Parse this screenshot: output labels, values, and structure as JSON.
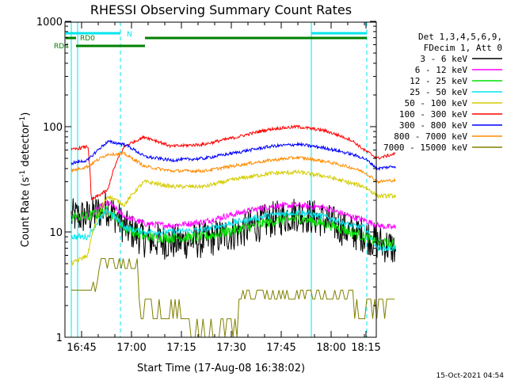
{
  "chart_data": {
    "type": "line",
    "title": "RHESSI Observing Summary Count Rates",
    "xlabel": "Start Time (17-Aug-08 16:38:02)",
    "ylabel_main": "Count Rate (s",
    "ylabel_sup1": "-1",
    "ylabel_mid": " detector",
    "ylabel_sup2": "-1",
    "ylabel_end": ")",
    "x_scale": "time, minutes after 16:38:02",
    "x_ticks": [
      "16:45",
      "17:00",
      "17:15",
      "17:30",
      "17:45",
      "18:00",
      "18:15"
    ],
    "y_scale": "log",
    "ylim": [
      1,
      1000
    ],
    "y_ticks": [
      "1",
      "10",
      "100",
      "1000"
    ],
    "grid": false,
    "legend_header": [
      "Det 1,3,4,5,6,9,",
      "FDecim 1, Att 0"
    ],
    "legend_position": "right",
    "series": [
      {
        "name": "3 - 6 keV",
        "color": "#000000"
      },
      {
        "name": "6 - 12 keV",
        "color": "#ff00ff"
      },
      {
        "name": "12 - 25 keV",
        "color": "#00e000"
      },
      {
        "name": "25 - 50 keV",
        "color": "#00e5ee"
      },
      {
        "name": "50 - 100 keV",
        "color": "#d4cc00"
      },
      {
        "name": "100 - 300 keV",
        "color": "#ff0000"
      },
      {
        "name": "300 - 800 keV",
        "color": "#0000ff"
      },
      {
        "name": "800 - 7000 keV",
        "color": "#ff8c00"
      },
      {
        "name": "7000 - 15000 keV",
        "color": "#808000"
      }
    ],
    "flag_bars": [
      {
        "label": "N",
        "color": "#00e5ee"
      },
      {
        "label": "RD0",
        "color": "#008000"
      },
      {
        "label": "RD4",
        "color": "#008000"
      }
    ],
    "timestamp": "15-Oct-2021 04:54"
  }
}
